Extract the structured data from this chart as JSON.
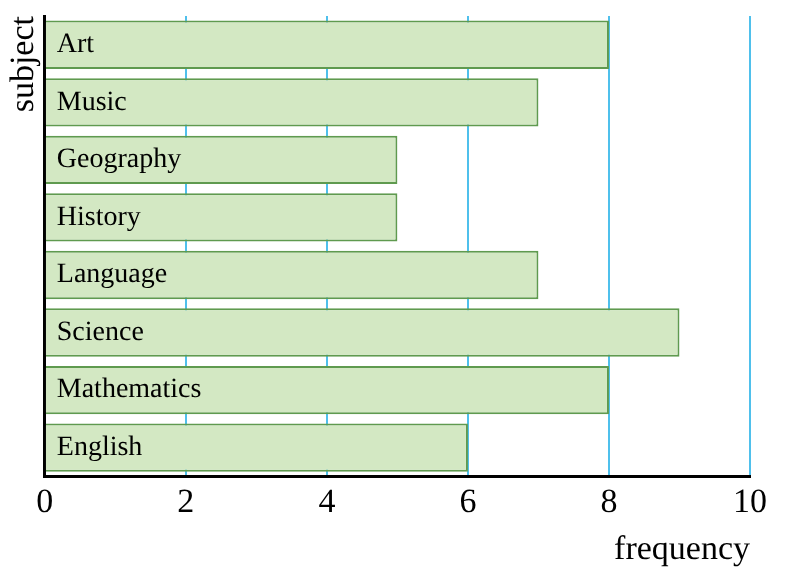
{
  "chart_data": {
    "type": "bar",
    "orientation": "horizontal",
    "xlabel": "frequency",
    "ylabel": "subject",
    "categories": [
      "Art",
      "Music",
      "Geography",
      "History",
      "Language",
      "Science",
      "Mathematics",
      "English"
    ],
    "values": [
      8,
      7,
      5,
      5,
      7,
      9,
      8,
      6
    ],
    "color": "#d3e8c3",
    "xlim": [
      0,
      10
    ],
    "xticks": [
      0,
      2,
      4,
      6,
      8,
      10
    ],
    "grid": "x"
  }
}
